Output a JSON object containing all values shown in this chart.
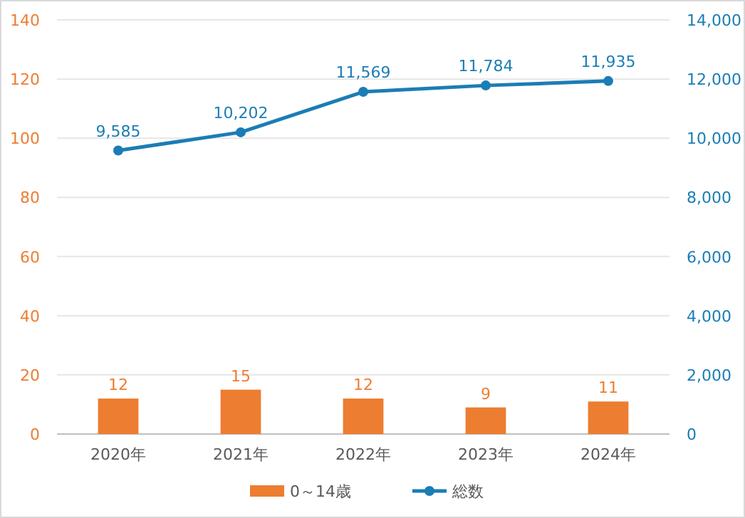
{
  "chart_data": {
    "type": "bar",
    "categories": [
      "2020年",
      "2021年",
      "2022年",
      "2023年",
      "2024年"
    ],
    "series": [
      {
        "name": "0～14歳",
        "color": "#ed7d31",
        "values": [
          12,
          15,
          12,
          9,
          11
        ],
        "value_labels": [
          "12",
          "15",
          "12",
          "9",
          "11"
        ]
      },
      {
        "name": "総数",
        "type": "line",
        "axis": "y2",
        "color": "#1b7db5",
        "marker": "circle",
        "values": [
          9585,
          10202,
          11569,
          11784,
          11935
        ],
        "value_labels": [
          "9,585",
          "10,202",
          "11,569",
          "11,784",
          "11,935"
        ]
      }
    ],
    "ylim": [
      0,
      140
    ],
    "yticks": [
      0,
      20,
      40,
      60,
      80,
      100,
      120,
      140
    ],
    "y2lim": [
      0,
      14000
    ],
    "y2ticks": [
      0,
      {
        "value": 2000,
        "label": "2,000"
      },
      {
        "value": 4000,
        "label": "4,000"
      },
      {
        "value": 6000,
        "label": "6,000"
      },
      {
        "value": 8000,
        "label": "8,000"
      },
      {
        "value": 10000,
        "label": "10,000"
      },
      {
        "value": 12000,
        "label": "12,000"
      },
      {
        "value": 14000,
        "label": "14,000"
      }
    ],
    "grid": "y",
    "legend": "bottom"
  }
}
